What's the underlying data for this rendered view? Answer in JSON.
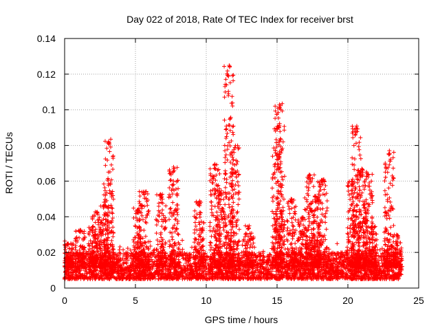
{
  "chart_data": {
    "type": "scatter",
    "title": "Day 022 of 2018, Rate Of TEC Index for receiver brst",
    "xlabel": "GPS time / hours",
    "ylabel": "ROTI / TECUs",
    "xlim": [
      0,
      25
    ],
    "ylim": [
      0,
      0.14
    ],
    "xticks": [
      0,
      5,
      10,
      15,
      20,
      25
    ],
    "yticks": [
      0,
      0.02,
      0.04,
      0.06,
      0.08,
      0.1,
      0.12,
      0.14
    ],
    "xtick_labels": [
      "0",
      "5",
      "10",
      "15",
      "20",
      "25"
    ],
    "ytick_labels": [
      "0",
      "0.02",
      "0.04",
      "0.06",
      "0.08",
      "0.1",
      "0.12",
      "0.14"
    ],
    "grid": true,
    "marker": "+",
    "color": "#ff0000",
    "x_extent": [
      0,
      23.8
    ],
    "baseline_range": [
      0.005,
      0.02
    ],
    "bursts": [
      {
        "t": 0.2,
        "peak": 0.025
      },
      {
        "t": 1.1,
        "peak": 0.033
      },
      {
        "t": 2.0,
        "peak": 0.035
      },
      {
        "t": 2.3,
        "peak": 0.043
      },
      {
        "t": 2.8,
        "peak": 0.047
      },
      {
        "t": 3.1,
        "peak": 0.084
      },
      {
        "t": 5.2,
        "peak": 0.045
      },
      {
        "t": 5.6,
        "peak": 0.055
      },
      {
        "t": 6.8,
        "peak": 0.053
      },
      {
        "t": 7.7,
        "peak": 0.068
      },
      {
        "t": 9.5,
        "peak": 0.049
      },
      {
        "t": 10.6,
        "peak": 0.07
      },
      {
        "t": 11.0,
        "peak": 0.055
      },
      {
        "t": 11.6,
        "peak": 0.125
      },
      {
        "t": 12.0,
        "peak": 0.08
      },
      {
        "t": 13.0,
        "peak": 0.035
      },
      {
        "t": 15.0,
        "peak": 0.092
      },
      {
        "t": 15.2,
        "peak": 0.104
      },
      {
        "t": 16.0,
        "peak": 0.05
      },
      {
        "t": 16.8,
        "peak": 0.04
      },
      {
        "t": 17.3,
        "peak": 0.064
      },
      {
        "t": 17.7,
        "peak": 0.052
      },
      {
        "t": 18.2,
        "peak": 0.061
      },
      {
        "t": 20.3,
        "peak": 0.06
      },
      {
        "t": 20.6,
        "peak": 0.092
      },
      {
        "t": 21.0,
        "peak": 0.067
      },
      {
        "t": 21.4,
        "peak": 0.065
      },
      {
        "t": 21.7,
        "peak": 0.035
      },
      {
        "t": 22.9,
        "peak": 0.078
      },
      {
        "t": 23.5,
        "peak": 0.03
      }
    ]
  }
}
